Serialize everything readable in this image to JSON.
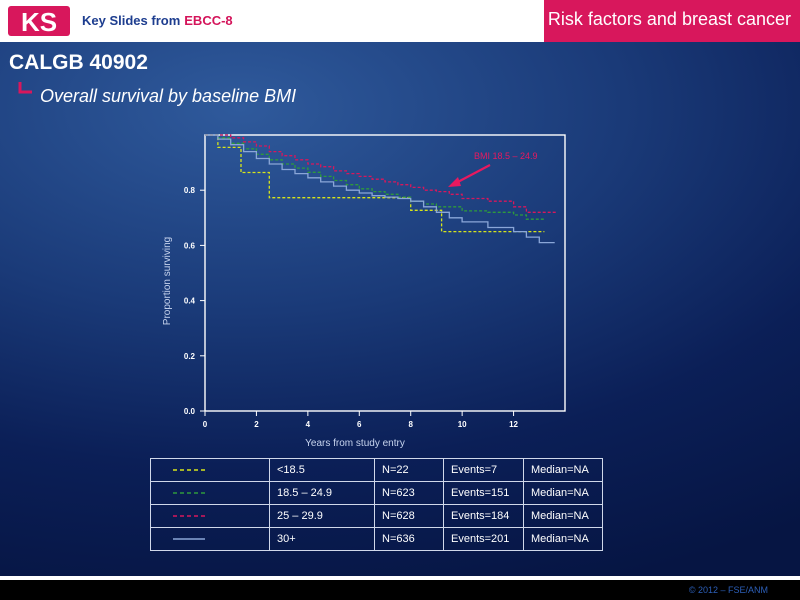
{
  "header": {
    "logo_text": "KS",
    "key_slides_label": "Key Slides from",
    "conference": "EBCC-8",
    "topic": "Risk factors and breast cancer"
  },
  "slide": {
    "title": "CALGB 40902",
    "subtitle": "Overall survival by baseline BMI"
  },
  "colors": {
    "under_18_5": "#d7e51a",
    "bmi_18_5_24_9": "#2e9a3c",
    "bmi_25_29_9": "#d8175c",
    "bmi_30_plus": "#8aa6d8",
    "header_accent": "#d8175c"
  },
  "chart_data": {
    "type": "line",
    "title": "",
    "xlabel": "Years from study entry",
    "ylabel": "Proportion surviving",
    "xlim": [
      0,
      14
    ],
    "ylim": [
      0,
      1.0
    ],
    "xticks": [
      "0",
      "2",
      "4",
      "6",
      "8",
      "10",
      "12"
    ],
    "yticks": [
      "0.0",
      "0.2",
      "0.4",
      "0.6",
      "0.8"
    ],
    "annotation": "BMI 18.5 – 24.9",
    "series": [
      {
        "name": "<18.5",
        "color": "#d7e51a",
        "dash": "dashed",
        "points": [
          [
            0,
            1.0
          ],
          [
            0.5,
            1.0
          ],
          [
            0.5,
            0.955
          ],
          [
            1.4,
            0.955
          ],
          [
            1.4,
            0.864
          ],
          [
            2.5,
            0.864
          ],
          [
            2.5,
            0.773
          ],
          [
            8.0,
            0.773
          ],
          [
            8.0,
            0.727
          ],
          [
            9.2,
            0.727
          ],
          [
            9.2,
            0.65
          ],
          [
            13.2,
            0.65
          ]
        ]
      },
      {
        "name": "18.5 – 24.9",
        "color": "#2e9a3c",
        "dash": "dashed",
        "points": [
          [
            0,
            1.0
          ],
          [
            0.5,
            0.99
          ],
          [
            1.0,
            0.97
          ],
          [
            1.5,
            0.95
          ],
          [
            2.0,
            0.93
          ],
          [
            2.5,
            0.91
          ],
          [
            3.0,
            0.895
          ],
          [
            3.5,
            0.88
          ],
          [
            4.0,
            0.865
          ],
          [
            4.5,
            0.85
          ],
          [
            5.0,
            0.835
          ],
          [
            5.5,
            0.82
          ],
          [
            6.0,
            0.805
          ],
          [
            6.5,
            0.795
          ],
          [
            7.0,
            0.785
          ],
          [
            7.5,
            0.775
          ],
          [
            8.0,
            0.76
          ],
          [
            8.5,
            0.75
          ],
          [
            9.0,
            0.74
          ],
          [
            10.0,
            0.725
          ],
          [
            11.0,
            0.72
          ],
          [
            12.0,
            0.71
          ],
          [
            12.5,
            0.695
          ],
          [
            13.2,
            0.695
          ]
        ]
      },
      {
        "name": "25 – 29.9",
        "color": "#d8175c",
        "dash": "dashed",
        "points": [
          [
            0,
            1.0
          ],
          [
            0.5,
            1.0
          ],
          [
            1.0,
            0.99
          ],
          [
            1.5,
            0.975
          ],
          [
            2.0,
            0.96
          ],
          [
            2.5,
            0.94
          ],
          [
            3.0,
            0.925
          ],
          [
            3.5,
            0.91
          ],
          [
            4.0,
            0.895
          ],
          [
            4.5,
            0.885
          ],
          [
            5.0,
            0.87
          ],
          [
            5.5,
            0.86
          ],
          [
            6.0,
            0.85
          ],
          [
            6.5,
            0.84
          ],
          [
            7.0,
            0.83
          ],
          [
            7.5,
            0.82
          ],
          [
            8.0,
            0.81
          ],
          [
            8.5,
            0.8
          ],
          [
            9.0,
            0.795
          ],
          [
            9.5,
            0.785
          ],
          [
            10.0,
            0.77
          ],
          [
            11.0,
            0.76
          ],
          [
            12.0,
            0.74
          ],
          [
            12.5,
            0.72
          ],
          [
            13.7,
            0.72
          ]
        ]
      },
      {
        "name": "30+",
        "color": "#8aa6d8",
        "dash": "solid",
        "points": [
          [
            0,
            1.0
          ],
          [
            0.5,
            0.985
          ],
          [
            1.0,
            0.965
          ],
          [
            1.5,
            0.94
          ],
          [
            2.0,
            0.915
          ],
          [
            2.5,
            0.895
          ],
          [
            3.0,
            0.875
          ],
          [
            3.5,
            0.86
          ],
          [
            4.0,
            0.845
          ],
          [
            4.5,
            0.83
          ],
          [
            5.0,
            0.815
          ],
          [
            5.5,
            0.8
          ],
          [
            6.0,
            0.79
          ],
          [
            6.5,
            0.78
          ],
          [
            7.0,
            0.775
          ],
          [
            7.5,
            0.77
          ],
          [
            8.0,
            0.76
          ],
          [
            8.5,
            0.74
          ],
          [
            9.0,
            0.72
          ],
          [
            9.5,
            0.7
          ],
          [
            10.0,
            0.685
          ],
          [
            11.0,
            0.665
          ],
          [
            12.0,
            0.65
          ],
          [
            12.5,
            0.63
          ],
          [
            13.0,
            0.61
          ],
          [
            13.6,
            0.61
          ]
        ]
      }
    ]
  },
  "legend_table": [
    {
      "label": "<18.5",
      "n": "N=22",
      "events": "Events=7",
      "median": "Median=NA"
    },
    {
      "label": "18.5 – 24.9",
      "n": "N=623",
      "events": "Events=151",
      "median": "Median=NA"
    },
    {
      "label": "25 – 29.9",
      "n": "N=628",
      "events": "Events=184",
      "median": "Median=NA"
    },
    {
      "label": "30+",
      "n": "N=636",
      "events": "Events=201",
      "median": "Median=NA"
    }
  ],
  "footer": {
    "copyright": "© 2012 – FSE/ANM"
  }
}
